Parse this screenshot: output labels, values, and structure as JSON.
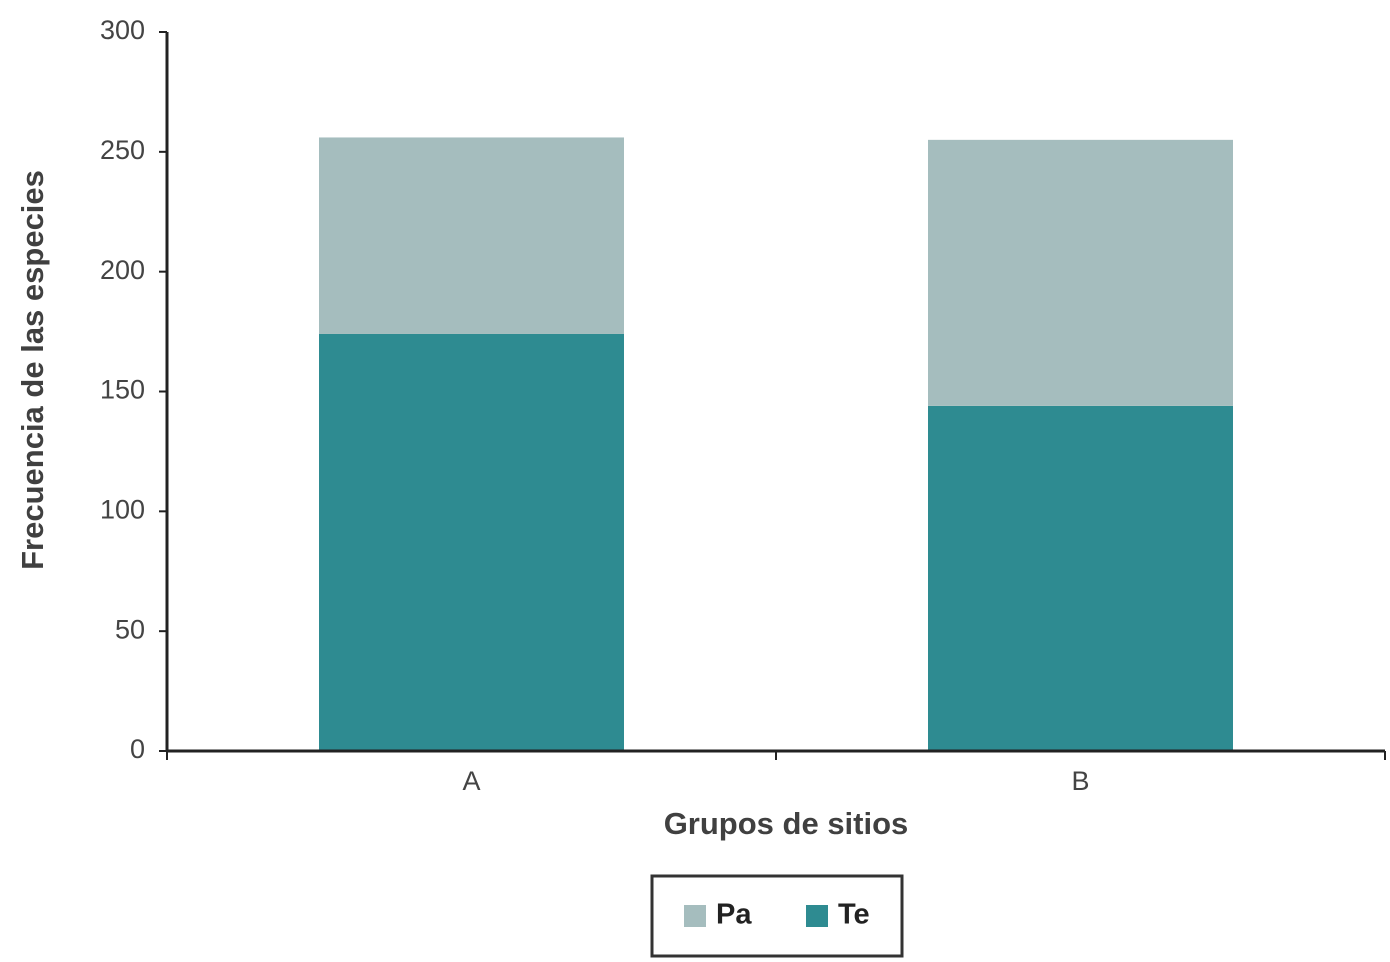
{
  "chart_data": {
    "type": "stacked_bar",
    "x_label": "Grupos de sitios",
    "y_label": "Frecuencia de las especies",
    "categories": [
      "A",
      "B"
    ],
    "series": [
      {
        "name": "Pa",
        "color": "#a5bdbe",
        "values": [
          82,
          111
        ]
      },
      {
        "name": "Te",
        "color": "#2e8b91",
        "values": [
          174,
          144
        ]
      }
    ],
    "ylim": [
      0,
      300
    ],
    "yticks": [
      0,
      50,
      100,
      150,
      200,
      250,
      300
    ],
    "legend": "bottom"
  }
}
